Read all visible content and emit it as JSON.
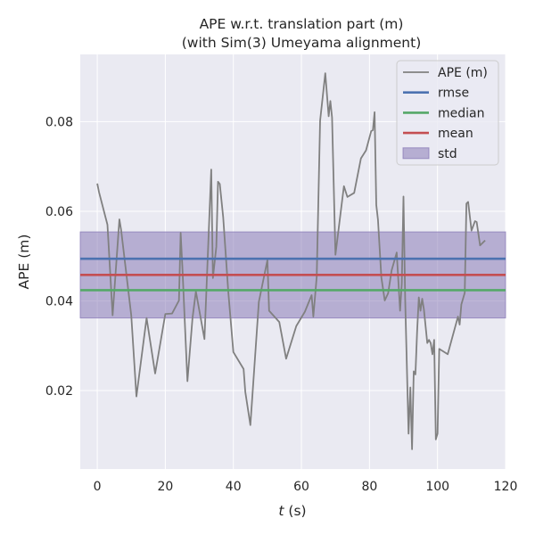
{
  "chart_data": {
    "type": "line",
    "title": "APE w.r.t. translation part (m)",
    "subtitle": "(with Sim(3) Umeyama alignment)",
    "xlabel_italic": "t",
    "xlabel_rest": " (s)",
    "ylabel": "APE (m)",
    "xlim": [
      -5,
      120
    ],
    "ylim": [
      0.0025,
      0.095
    ],
    "xticks": [
      0,
      20,
      40,
      60,
      80,
      100,
      120
    ],
    "yticks": [
      0.02,
      0.04,
      0.06,
      0.08
    ],
    "ytick_labels": [
      "0.02",
      "0.04",
      "0.06",
      "0.08"
    ],
    "grid": true,
    "legend_position": "top-right",
    "series": [
      {
        "name": "APE (m)",
        "color": "#808080",
        "x": [
          0,
          0.5,
          3,
          4.5,
          6.5,
          7,
          10,
          11.5,
          14.5,
          17,
          20,
          22,
          24,
          24.5,
          25,
          26.5,
          28,
          29,
          31.5,
          33.5,
          34,
          35,
          35.5,
          36,
          37,
          38.5,
          40,
          43,
          43.5,
          45,
          47.5,
          50,
          50.5,
          53.5,
          55.5,
          58.5,
          61,
          63,
          63.5,
          64.5,
          65.5,
          67,
          68,
          68.5,
          69,
          70,
          72.5,
          73.5,
          75.5,
          77.5,
          79,
          80.5,
          81,
          81.5,
          82,
          82.5,
          83.5,
          84.5,
          85.5,
          86.5,
          88,
          89,
          89.5,
          90,
          90.5,
          91.5,
          92,
          92.5,
          93,
          93.5,
          94,
          94.5,
          95,
          95.5,
          96,
          97,
          97.5,
          98,
          98.5,
          99,
          99.5,
          100,
          100.5,
          103,
          106,
          106.5,
          107,
          108,
          108.5,
          109,
          110,
          111,
          111.5,
          112.5,
          114
        ],
        "values": [
          0.0662,
          0.0643,
          0.057,
          0.0368,
          0.0582,
          0.0559,
          0.0368,
          0.0187,
          0.0362,
          0.0238,
          0.0371,
          0.0372,
          0.0401,
          0.0552,
          0.0477,
          0.0221,
          0.0362,
          0.0421,
          0.0315,
          0.0693,
          0.0451,
          0.0521,
          0.0666,
          0.0661,
          0.0587,
          0.0421,
          0.0286,
          0.0248,
          0.0197,
          0.0123,
          0.0398,
          0.0491,
          0.0378,
          0.0353,
          0.0271,
          0.0344,
          0.0376,
          0.0413,
          0.0365,
          0.0454,
          0.0802,
          0.0908,
          0.0812,
          0.0846,
          0.0809,
          0.0503,
          0.0656,
          0.0632,
          0.0641,
          0.0718,
          0.0736,
          0.0779,
          0.0781,
          0.0821,
          0.0614,
          0.0581,
          0.0452,
          0.0401,
          0.0417,
          0.0468,
          0.0508,
          0.0378,
          0.0438,
          0.0633,
          0.0404,
          0.0104,
          0.0207,
          0.0069,
          0.0243,
          0.0236,
          0.0332,
          0.0408,
          0.0378,
          0.0405,
          0.0381,
          0.0306,
          0.0313,
          0.0306,
          0.0281,
          0.0313,
          0.0091,
          0.0104,
          0.0293,
          0.0281,
          0.0365,
          0.0347,
          0.0392,
          0.0418,
          0.0617,
          0.0621,
          0.0557,
          0.0578,
          0.0576,
          0.0524,
          0.0535
        ]
      },
      {
        "name": "rmse",
        "color": "#4c72b0",
        "value": 0.0494
      },
      {
        "name": "median",
        "color": "#55a868",
        "value": 0.0424
      },
      {
        "name": "mean",
        "color": "#c44e52",
        "value": 0.0458
      },
      {
        "name": "std",
        "color": "#8172b2",
        "range": [
          0.0362,
          0.0554
        ]
      }
    ]
  },
  "colors": {
    "axes_background": "#eaeaf2",
    "grid": "#ffffff",
    "text": "#262626",
    "std_fill": "#8172b2"
  }
}
